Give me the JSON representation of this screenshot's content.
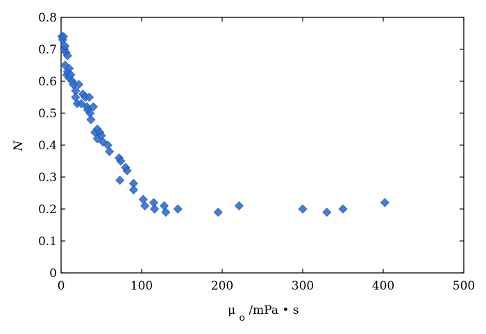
{
  "chart_data": {
    "type": "scatter",
    "xlabel_main": "μ",
    "xlabel_sub": "o",
    "xlabel_rest": "/mPa • s",
    "ylabel": "N",
    "xlim": [
      0,
      500
    ],
    "ylim": [
      0,
      0.8
    ],
    "xticks": [
      0,
      100,
      200,
      300,
      400,
      500
    ],
    "yticks": [
      0,
      0.1,
      0.2,
      0.3,
      0.4,
      0.5,
      0.6,
      0.7,
      0.8
    ],
    "xtick_labels": [
      "0",
      "100",
      "200",
      "300",
      "400",
      "500"
    ],
    "ytick_labels": [
      "0",
      "0.1",
      "0.2",
      "0.3",
      "0.4",
      "0.5",
      "0.6",
      "0.7",
      "0.8"
    ],
    "grid": false,
    "marker_color": "#2f6fd6",
    "series": [
      {
        "x": [
          1,
          2,
          3,
          4,
          5,
          5,
          6,
          7,
          8,
          8,
          10,
          10,
          12,
          14,
          15,
          18,
          18,
          20,
          22,
          25,
          27,
          30,
          32,
          33,
          35,
          36,
          37,
          40,
          42,
          45,
          45,
          48,
          50,
          52,
          58,
          60,
          72,
          73,
          74,
          80,
          82,
          90,
          90,
          102,
          104,
          115,
          116,
          128,
          130,
          145,
          195,
          221,
          300,
          330,
          350,
          402
        ],
        "y": [
          0.74,
          0.73,
          0.74,
          0.7,
          0.71,
          0.65,
          0.69,
          0.62,
          0.68,
          0.63,
          0.64,
          0.61,
          0.62,
          0.6,
          0.59,
          0.57,
          0.55,
          0.53,
          0.59,
          0.53,
          0.56,
          0.55,
          0.52,
          0.51,
          0.55,
          0.5,
          0.48,
          0.52,
          0.44,
          0.45,
          0.42,
          0.44,
          0.43,
          0.41,
          0.4,
          0.38,
          0.36,
          0.29,
          0.35,
          0.33,
          0.32,
          0.28,
          0.26,
          0.23,
          0.21,
          0.22,
          0.2,
          0.21,
          0.19,
          0.2,
          0.19,
          0.21,
          0.2,
          0.19,
          0.2,
          0.22
        ]
      }
    ]
  }
}
